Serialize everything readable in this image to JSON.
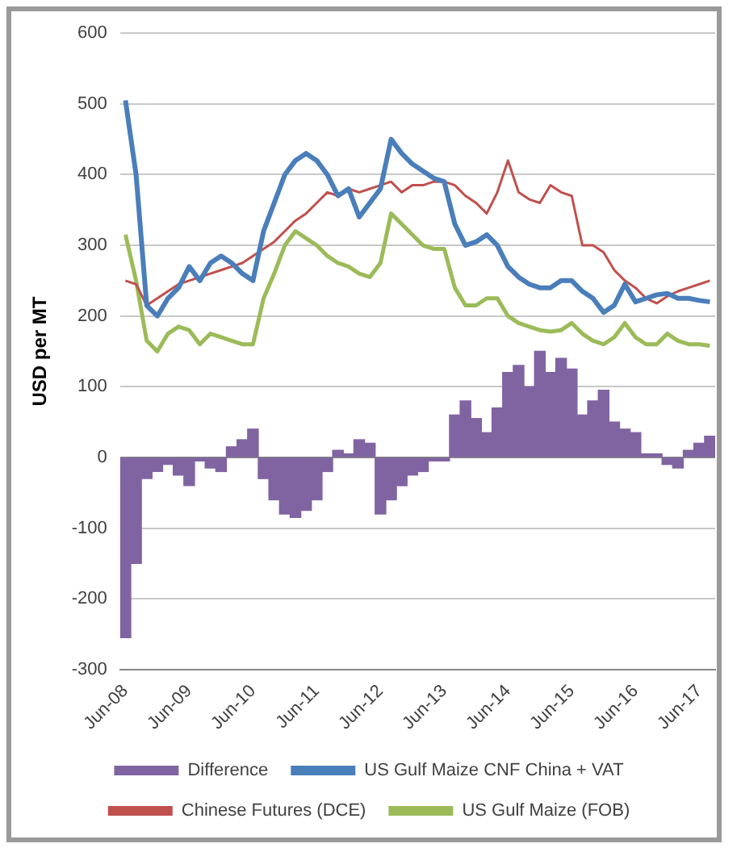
{
  "chart_data": {
    "type": "line",
    "ylabel": "USD per MT",
    "categories": [
      "Jun-08",
      null,
      null,
      null,
      null,
      null,
      "Jun-09",
      null,
      null,
      null,
      null,
      null,
      "Jun-10",
      null,
      null,
      null,
      null,
      null,
      "Jun-11",
      null,
      null,
      null,
      null,
      null,
      "Jun-12",
      null,
      null,
      null,
      null,
      null,
      "Jun-13",
      null,
      null,
      null,
      null,
      null,
      "Jun-14",
      null,
      null,
      null,
      null,
      null,
      "Jun-15",
      null,
      null,
      null,
      null,
      null,
      "Jun-16",
      null,
      null,
      null,
      null,
      null,
      "Jun-17",
      null
    ],
    "series": [
      {
        "name": "Difference",
        "type": "bar",
        "color": "#8064a2",
        "values": [
          -255,
          -150,
          -30,
          -20,
          -10,
          -25,
          -40,
          -5,
          -15,
          -20,
          15,
          25,
          40,
          -30,
          -60,
          -80,
          -85,
          -75,
          -60,
          -20,
          10,
          5,
          25,
          20,
          -80,
          -60,
          -40,
          -25,
          -20,
          -5,
          -5,
          60,
          80,
          55,
          35,
          70,
          120,
          130,
          100,
          150,
          120,
          140,
          125,
          60,
          80,
          95,
          50,
          40,
          35,
          5,
          5,
          -10,
          -15,
          10,
          20,
          30
        ]
      },
      {
        "name": "US Gulf Maize CNF China + VAT",
        "color": "#4a7ebb",
        "values": [
          505,
          400,
          215,
          200,
          225,
          240,
          270,
          250,
          275,
          285,
          275,
          260,
          250,
          320,
          360,
          400,
          420,
          430,
          420,
          400,
          370,
          380,
          340,
          360,
          380,
          450,
          430,
          415,
          405,
          395,
          390,
          330,
          300,
          305,
          315,
          300,
          270,
          255,
          245,
          240,
          240,
          250,
          250,
          235,
          225,
          205,
          215,
          245,
          220,
          225,
          230,
          232,
          225,
          225,
          222,
          220
        ]
      },
      {
        "name": "Chinese Futures (DCE)",
        "color": "#c0504d",
        "values": [
          250,
          245,
          215,
          225,
          235,
          245,
          250,
          255,
          260,
          265,
          270,
          275,
          285,
          295,
          305,
          320,
          335,
          345,
          360,
          375,
          370,
          380,
          375,
          380,
          385,
          390,
          375,
          385,
          385,
          390,
          390,
          385,
          370,
          360,
          345,
          375,
          420,
          375,
          365,
          360,
          385,
          375,
          370,
          300,
          300,
          290,
          265,
          250,
          240,
          225,
          218,
          228,
          235,
          240,
          245,
          250
        ]
      },
      {
        "name": "US Gulf Maize (FOB)",
        "color": "#9bbb59",
        "values": [
          315,
          250,
          165,
          150,
          175,
          185,
          180,
          160,
          175,
          170,
          165,
          160,
          160,
          225,
          260,
          300,
          320,
          310,
          300,
          285,
          275,
          270,
          260,
          255,
          275,
          345,
          330,
          315,
          300,
          295,
          295,
          240,
          215,
          215,
          225,
          225,
          200,
          190,
          185,
          180,
          178,
          180,
          190,
          175,
          165,
          160,
          170,
          190,
          170,
          160,
          160,
          175,
          165,
          160,
          160,
          158
        ]
      }
    ],
    "ylim": [
      -300,
      600
    ],
    "yticks": [
      -300,
      -200,
      -100,
      0,
      100,
      200,
      300,
      400,
      500,
      600
    ],
    "grid": "y",
    "legend": "bottom",
    "marker": "none",
    "line_style": "solid"
  }
}
